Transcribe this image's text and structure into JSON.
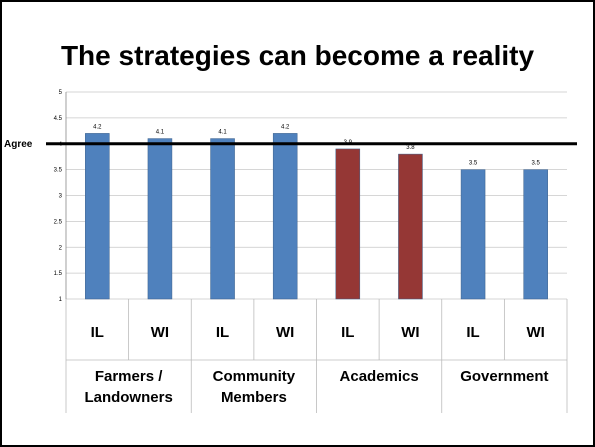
{
  "slide": {
    "title": "The strategies can become a reality"
  },
  "chart_data": {
    "type": "bar",
    "categories": [
      "IL",
      "WI",
      "IL",
      "WI",
      "IL",
      "WI",
      "IL",
      "WI"
    ],
    "groups": [
      {
        "label_lines": [
          "Farmers /",
          "Landowners"
        ]
      },
      {
        "label_lines": [
          "Community",
          "Members"
        ]
      },
      {
        "label_lines": [
          "Academics"
        ]
      },
      {
        "label_lines": [
          "Government"
        ]
      }
    ],
    "values": [
      4.2,
      4.1,
      4.1,
      4.2,
      3.9,
      3.8,
      3.5,
      3.5
    ],
    "data_labels": [
      "4.2",
      "4.1",
      "4.1",
      "4.2",
      "3.9",
      "3.8",
      "3.5",
      "3.5"
    ],
    "colors": [
      "#4f81bd",
      "#4f81bd",
      "#4f81bd",
      "#4f81bd",
      "#953735",
      "#953735",
      "#4f81bd",
      "#4f81bd"
    ],
    "yticks": [
      "1",
      "1.5",
      "2",
      "2.5",
      "3",
      "3.5",
      "4",
      "4.5",
      "5"
    ],
    "ylim": [
      1,
      5
    ],
    "grid": true,
    "reference_line": {
      "value": 4,
      "label": "Agree"
    }
  }
}
